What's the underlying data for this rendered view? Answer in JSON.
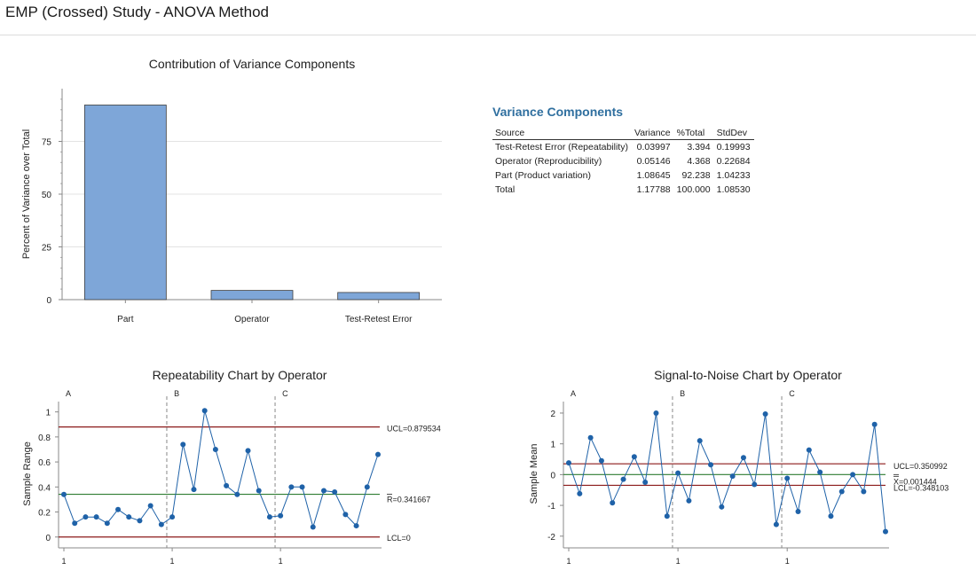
{
  "page": {
    "title": "EMP (Crossed) Study - ANOVA Method"
  },
  "variance_table": {
    "title": "Variance Components",
    "headers": [
      "Source",
      "Variance",
      "%Total",
      "StdDev"
    ],
    "rows": [
      [
        "Test-Retest Error (Repeatability)",
        "0.03997",
        "3.394",
        "0.19993"
      ],
      [
        "Operator (Reproducibility)",
        "0.05146",
        "4.368",
        "0.22684"
      ],
      [
        "Part (Product variation)",
        "1.08645",
        "92.238",
        "1.04233"
      ],
      [
        "Total",
        "1.17788",
        "100.000",
        "1.08530"
      ]
    ]
  },
  "chart_data": [
    {
      "type": "bar",
      "title": "Contribution of Variance Components",
      "ylabel": "Percent of Variance over Total",
      "xlabel": "",
      "categories": [
        "Part",
        "Operator",
        "Test-Retest Error"
      ],
      "values": [
        92.238,
        4.368,
        3.394
      ],
      "ylim": [
        0,
        100
      ],
      "yticks": [
        0,
        25,
        50,
        75
      ],
      "grid": true,
      "bar_color": "#7ea6d8"
    },
    {
      "type": "line",
      "title": "Repeatability Chart by Operator",
      "ylabel": "Sample Range",
      "groups": [
        "A",
        "B",
        "C"
      ],
      "x_tick_label": "1",
      "ylim": [
        -0.03,
        1.04
      ],
      "yticks": [
        0,
        0.2,
        0.4,
        0.6,
        0.8,
        1
      ],
      "series": [
        {
          "values": [
            [
              0.34,
              0.11,
              0.16,
              0.16,
              0.11,
              0.22,
              0.16,
              0.13,
              0.25,
              0.1
            ],
            [
              0.16,
              0.74,
              0.38,
              1.01,
              0.7,
              0.41,
              0.34,
              0.69,
              0.37,
              0.16
            ],
            [
              0.17,
              0.4,
              0.4,
              0.08,
              0.37,
              0.36,
              0.18,
              0.09,
              0.4,
              0.66
            ]
          ]
        }
      ],
      "control_lines": [
        {
          "label": "UCL=0.879534",
          "value": 0.879534,
          "color": "#8b1a1a"
        },
        {
          "label": "R=0.341667",
          "value": 0.341667,
          "color": "#2e7d32",
          "bar_over": "R"
        },
        {
          "label": "LCL=0",
          "value": 0,
          "color": "#8b1a1a"
        }
      ],
      "line_color": "#1f62a8"
    },
    {
      "type": "line",
      "title": "Signal-to-Noise Chart by Operator",
      "ylabel": "Sample Mean",
      "groups": [
        "A",
        "B",
        "C"
      ],
      "x_tick_label": "1",
      "ylim": [
        -2.15,
        2.2
      ],
      "yticks": [
        -2,
        -1,
        0,
        1,
        2
      ],
      "series": [
        {
          "values": [
            [
              0.38,
              -0.62,
              1.2,
              0.45,
              -0.92,
              -0.15,
              0.58,
              -0.25,
              2.0,
              -1.35
            ],
            [
              0.05,
              -0.85,
              1.1,
              0.32,
              -1.05,
              -0.05,
              0.55,
              -0.32,
              1.97,
              -1.62
            ],
            [
              -0.12,
              -1.2,
              0.8,
              0.08,
              -1.35,
              -0.55,
              0.0,
              -0.55,
              1.63,
              -1.85
            ]
          ]
        }
      ],
      "control_lines": [
        {
          "label": "UCL=0.350992",
          "value": 0.350992,
          "color": "#8b1a1a"
        },
        {
          "label": "X=0.001444",
          "value": 0.001444,
          "color": "#2e7d32",
          "bar_over": "X"
        },
        {
          "label": "LCL=-0.348103",
          "value": -0.348103,
          "color": "#8b1a1a"
        }
      ],
      "line_color": "#1f62a8"
    }
  ]
}
